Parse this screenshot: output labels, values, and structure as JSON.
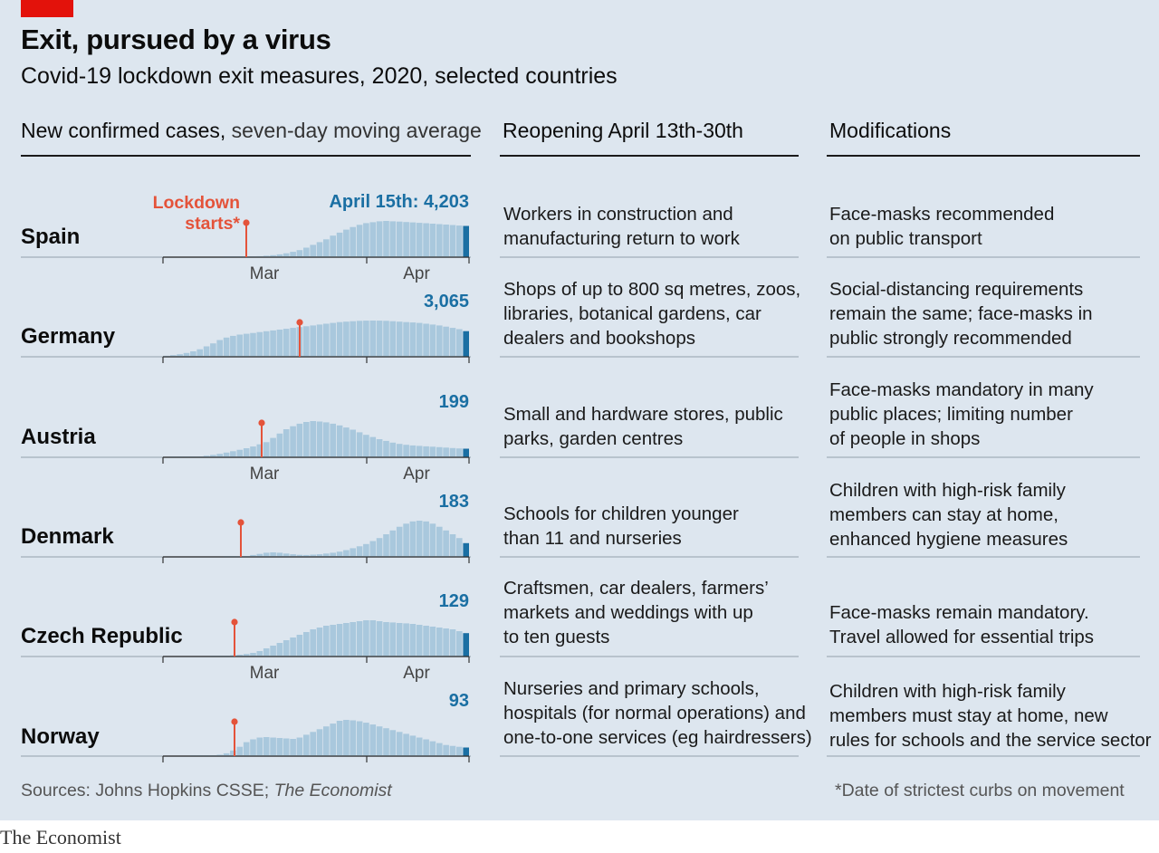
{
  "header": {
    "title": "Exit, pursued by a virus",
    "subtitle": "Covid-19 lockdown exit measures, 2020, selected countries"
  },
  "columns": {
    "cases_bold": "New confirmed cases,",
    "cases_light": " seven-day moving average",
    "reopening": "Reopening April 13th-30th",
    "modifications": "Modifications"
  },
  "chart_data": {
    "type": "bar",
    "title": "New confirmed cases, seven-day moving average",
    "x_ticks": [
      "Mar",
      "Apr"
    ],
    "lockdown_label": [
      "Lockdown",
      "starts*"
    ],
    "colors": {
      "bars": "#a9c8dd",
      "last_bar": "#1a6fa3",
      "lockdown": "#e4533a",
      "value_label": "#1a6fa3"
    },
    "series": [
      {
        "name": "Spain",
        "value_label": "April 15th: 4,203",
        "lockdown_day": "March 14th",
        "values": [
          0,
          0,
          0,
          0,
          0,
          0,
          0,
          0,
          0,
          0,
          0,
          0,
          0,
          0,
          0,
          0,
          0,
          0,
          0,
          0,
          0,
          0,
          0,
          0,
          0,
          0,
          0,
          0,
          0,
          0,
          0,
          0,
          0,
          0,
          0,
          0,
          0,
          0,
          0,
          2,
          10,
          18,
          28,
          60,
          130,
          200,
          270,
          380,
          520,
          720,
          950,
          1280,
          1650,
          2020,
          2400,
          2900,
          3300,
          3700,
          4050,
          4350,
          4580,
          4700,
          4820,
          4870,
          4820,
          4780,
          4720,
          4680,
          4620,
          4560,
          4500,
          4440,
          4380,
          4320,
          4250,
          4203
        ]
      },
      {
        "name": "Germany",
        "value_label": "3,065",
        "lockdown_day": "March 22nd",
        "values": [
          0,
          0,
          0,
          0,
          0,
          0,
          0,
          0,
          0,
          0,
          0,
          0,
          0,
          0,
          0,
          0,
          0,
          0,
          0,
          0,
          0,
          0,
          0,
          0,
          0,
          0,
          0,
          0,
          0,
          0,
          0,
          0,
          0,
          0,
          0,
          0,
          0,
          0,
          0,
          0,
          0,
          0,
          0,
          0,
          0,
          2,
          5,
          10,
          20,
          40,
          70,
          120,
          200,
          300,
          450,
          650,
          900,
          1250,
          1600,
          2000,
          2300,
          2500,
          2650,
          2750,
          2850,
          2950,
          3050,
          3150,
          3250,
          3350,
          3450,
          3550,
          3650,
          3750,
          3850,
          3950,
          4050,
          4150,
          4200,
          4250,
          4300,
          4320,
          4330,
          4320,
          4300,
          4250,
          4200,
          4150,
          4100,
          4050,
          3950,
          3850,
          3750,
          3600,
          3450,
          3300,
          3065
        ]
      },
      {
        "name": "Austria",
        "value_label": "199",
        "lockdown_day": "March 16th",
        "values": [
          0,
          0,
          0,
          0,
          0,
          0,
          0,
          0,
          0,
          0,
          0,
          0,
          0,
          0,
          0,
          0,
          0,
          0,
          0,
          0,
          0,
          0,
          0,
          0,
          0,
          0,
          0,
          0,
          0,
          0,
          0,
          0,
          0,
          0,
          0,
          0,
          0,
          0,
          0,
          0,
          0,
          1,
          2,
          5,
          10,
          20,
          35,
          55,
          80,
          110,
          140,
          175,
          210,
          250,
          300,
          350,
          450,
          550,
          650,
          720,
          780,
          820,
          840,
          830,
          810,
          780,
          740,
          690,
          640,
          580,
          520,
          470,
          420,
          380,
          340,
          310,
          290,
          275,
          265,
          255,
          245,
          235,
          225,
          215,
          205,
          199
        ]
      },
      {
        "name": "Denmark",
        "value_label": "183",
        "lockdown_day": "March 13th",
        "values": [
          0,
          0,
          0,
          0,
          0,
          0,
          0,
          0,
          0,
          0,
          0,
          0,
          0,
          0,
          0,
          0,
          0,
          0,
          0,
          0,
          0,
          0,
          0,
          0,
          0,
          0,
          0,
          0,
          0,
          0,
          0,
          0,
          0,
          0,
          0,
          0,
          0,
          0,
          1,
          2,
          5,
          12,
          25,
          40,
          55,
          60,
          55,
          45,
          35,
          28,
          25,
          30,
          35,
          45,
          55,
          70,
          90,
          115,
          140,
          170,
          210,
          250,
          300,
          350,
          400,
          440,
          470,
          480,
          470,
          440,
          400,
          350,
          300,
          250,
          183
        ]
      },
      {
        "name": "Czech Republic",
        "value_label": "129",
        "lockdown_day": "March 16th",
        "values": [
          0,
          0,
          0,
          0,
          0,
          0,
          0,
          0,
          0,
          0,
          0,
          0,
          0,
          0,
          0,
          0,
          0,
          0,
          0,
          0,
          0,
          0,
          0,
          0,
          0,
          0,
          0,
          0,
          0,
          0,
          0,
          0,
          0,
          0,
          0,
          0,
          0,
          0,
          0,
          0,
          0,
          0,
          0,
          0,
          0,
          0,
          1,
          2,
          4,
          7,
          10,
          14,
          20,
          30,
          45,
          60,
          75,
          90,
          105,
          120,
          135,
          150,
          160,
          170,
          175,
          180,
          185,
          190,
          195,
          200,
          200,
          195,
          190,
          188,
          185,
          183,
          180,
          175,
          170,
          165,
          160,
          155,
          150,
          140,
          129
        ]
      },
      {
        "name": "Norway",
        "value_label": "93",
        "lockdown_day": "March 12th",
        "values": [
          0,
          0,
          0,
          0,
          0,
          0,
          0,
          0,
          0,
          0,
          0,
          0,
          0,
          0,
          0,
          0,
          0,
          0,
          0,
          0,
          0,
          0,
          0,
          0,
          0,
          0,
          0,
          0,
          0,
          0,
          0,
          0,
          0,
          0,
          0,
          0,
          0,
          0,
          1,
          2,
          4,
          8,
          15,
          30,
          60,
          100,
          150,
          180,
          200,
          205,
          200,
          195,
          190,
          185,
          200,
          230,
          260,
          290,
          320,
          350,
          380,
          390,
          385,
          375,
          360,
          340,
          320,
          300,
          280,
          260,
          240,
          220,
          200,
          180,
          160,
          140,
          120,
          110,
          100,
          93
        ]
      }
    ]
  },
  "rows": [
    {
      "reopening": [
        "Workers in construction and",
        "manufacturing return to work"
      ],
      "modifications": [
        "Face-masks recommended",
        "on public transport"
      ]
    },
    {
      "reopening": [
        "Shops of up to 800 sq metres, zoos,",
        "libraries, botanical gardens, car",
        "dealers and bookshops"
      ],
      "modifications": [
        "Social-distancing requirements",
        "remain the same; face-masks in",
        "public strongly recommended"
      ]
    },
    {
      "reopening": [
        "Small and hardware stores, public",
        "parks, garden centres"
      ],
      "modifications": [
        "Face-masks mandatory in many",
        "public places; limiting number",
        "of people in shops"
      ]
    },
    {
      "reopening": [
        "Schools for children younger",
        "than 11 and nurseries"
      ],
      "modifications": [
        "Children with high-risk family",
        "members can stay at home,",
        "enhanced hygiene measures"
      ]
    },
    {
      "reopening": [
        "Craftsmen, car dealers, farmers’",
        "markets and weddings with up",
        "to ten guests"
      ],
      "modifications": [
        "Face-masks remain mandatory.",
        "Travel allowed for essential trips"
      ]
    },
    {
      "reopening": [
        "Nurseries and primary schools,",
        "hospitals (for normal operations) and",
        "one-to-one services (eg hairdressers)"
      ],
      "modifications": [
        "Children with high-risk family",
        "members must stay at home, new",
        "rules for schools and the service sector"
      ]
    }
  ],
  "footer": {
    "source_prefix": "Sources: Johns Hopkins CSSE; ",
    "source_italic": "The Economist",
    "footnote": "*Date of strictest curbs on movement",
    "brand": "The Economist"
  }
}
